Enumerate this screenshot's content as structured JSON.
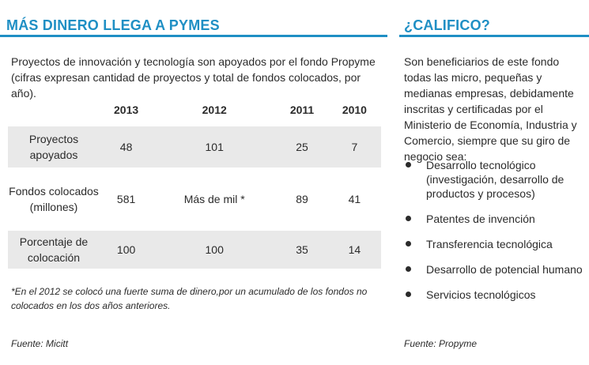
{
  "left": {
    "heading": "MÁS DINERO LLEGA A PYMES",
    "intro": "Proyectos de innovación y tecnología son apoyados por el fondo Propyme (cifras expresan cantidad de proyectos y total de fondos colocados, por año).",
    "table": {
      "years": [
        "2013",
        "2012",
        "2011",
        "2010"
      ],
      "rows": [
        {
          "label": "Proyectos apoyados",
          "values": [
            "48",
            "101",
            "25",
            "7"
          ]
        },
        {
          "label": "Fondos colocados (millones)",
          "values": [
            "581",
            "Más de mil *",
            "89",
            "41"
          ]
        },
        {
          "label": "Porcentaje de colocación",
          "values": [
            "100",
            "100",
            "35",
            "14"
          ]
        }
      ]
    },
    "note": "*En el 2012 se colocó una fuerte suma de dinero,por un acumulado de los fondos no colocados en los dos años anteriores.",
    "source": "Fuente: Micitt"
  },
  "right": {
    "heading": "¿CALIFICO?",
    "text": "Son beneficiarios de este fondo todas las micro, pequeñas y medianas empresas, debidamente inscritas y certificadas por el Ministerio de Economía, Industria y Comercio, siempre que su giro de negocio sea:",
    "bullets": [
      "Desarrollo tecnológico (investigación, desarrollo de productos y procesos)",
      "Patentes de invención",
      "Transferencia tecnológica",
      "Desarrollo de potencial humano",
      "Servicios tecnológicos"
    ],
    "source": "Fuente: Propyme"
  },
  "colors": {
    "accent": "#1f8fc4",
    "row_shade": "#e9e9e9"
  }
}
